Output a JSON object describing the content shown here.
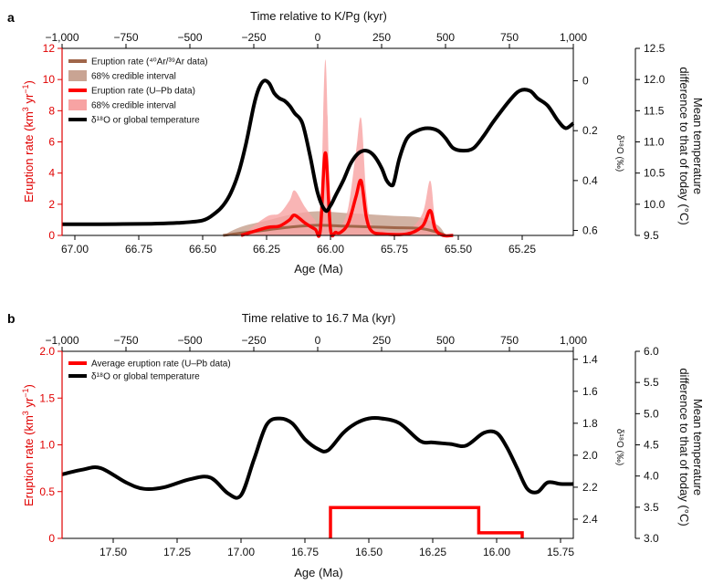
{
  "figure": {
    "panels": [
      {
        "letter": "a",
        "top_axis_label": "Time relative to K/Pg (kyr)",
        "top_ticks": [
          "−1,000",
          "−750",
          "−500",
          "−250",
          "0",
          "250",
          "500",
          "750",
          "1,000"
        ],
        "top_tick_values": [
          -1000,
          -750,
          -500,
          -250,
          0,
          250,
          500,
          750,
          1000
        ],
        "x_label": "Age (Ma)",
        "x_ticks": [
          "67.00",
          "66.75",
          "66.50",
          "66.25",
          "66.00",
          "65.75",
          "65.50",
          "65.25"
        ],
        "x_tick_values": [
          67.0,
          66.75,
          66.5,
          66.25,
          66.0,
          65.75,
          65.5,
          65.25
        ],
        "x_range": [
          67.05,
          65.05
        ],
        "y_label_main": "Eruption rate (km",
        "y_label_sup1": "3",
        "y_label_mid": " yr",
        "y_label_sup2": "−1",
        "y_label_end": ")",
        "y_ticks": [
          "0",
          "2",
          "4",
          "6",
          "8",
          "10",
          "12"
        ],
        "y_tick_values": [
          0,
          2,
          4,
          6,
          8,
          10,
          12
        ],
        "y_range": [
          0,
          12
        ],
        "d18o_label": "δ¹⁸O (‰)",
        "d18o_ticks": [
          "0",
          "0.2",
          "0.4",
          "0.6"
        ],
        "d18o_tick_values": [
          0,
          0.2,
          0.4,
          0.6
        ],
        "d18o_range": [
          -0.13,
          0.62
        ],
        "temp_label_line1": "Mean temperature",
        "temp_label_line2": "difference to that of today (°C)",
        "temp_ticks": [
          "9.5",
          "10.0",
          "10.5",
          "11.0",
          "11.5",
          "12.0",
          "12.5"
        ],
        "temp_tick_values": [
          9.5,
          10.0,
          10.5,
          11.0,
          11.5,
          12.0,
          12.5
        ],
        "temp_range": [
          9.5,
          12.5
        ],
        "legend": [
          {
            "label": "Eruption rate (⁴⁰Ar/³⁹Ar data)",
            "kind": "line",
            "color": "#a0664a"
          },
          {
            "label": "68% credible interval",
            "kind": "patch",
            "color": "#c9a493"
          },
          {
            "label": "Eruption rate (U–Pb data)",
            "kind": "line",
            "color": "#ff0000"
          },
          {
            "label": "68% credible interval",
            "kind": "patch",
            "color": "#f7a3a3"
          },
          {
            "label": "δ¹⁸O or global temperature",
            "kind": "line",
            "color": "#000000"
          }
        ]
      },
      {
        "letter": "b",
        "top_axis_label": "Time relative to 16.7 Ma (kyr)",
        "top_ticks": [
          "−1,000",
          "−750",
          "−500",
          "−250",
          "0",
          "250",
          "500",
          "750",
          "1,000"
        ],
        "top_tick_values": [
          -1000,
          -750,
          -500,
          -250,
          0,
          250,
          500,
          750,
          1000
        ],
        "x_label": "Age (Ma)",
        "x_ticks": [
          "17.50",
          "17.25",
          "17.00",
          "16.75",
          "16.50",
          "16.25",
          "16.00",
          "15.75"
        ],
        "x_tick_values": [
          17.5,
          17.25,
          17.0,
          16.75,
          16.5,
          16.25,
          16.0,
          15.75
        ],
        "x_range": [
          17.7,
          15.7
        ],
        "y_label_main": "Eruption rate (km",
        "y_label_sup1": "3",
        "y_label_mid": " yr",
        "y_label_sup2": "−1",
        "y_label_end": ")",
        "y_ticks": [
          "0",
          "0.5",
          "1.0",
          "1.5",
          "2.0"
        ],
        "y_tick_values": [
          0,
          0.5,
          1.0,
          1.5,
          2.0
        ],
        "y_range": [
          0,
          2.0
        ],
        "d18o_label": "δ¹⁸O (‰)",
        "d18o_ticks": [
          "1.4",
          "1.6",
          "1.8",
          "2.0",
          "2.2",
          "2.4"
        ],
        "d18o_tick_values": [
          1.4,
          1.6,
          1.8,
          2.0,
          2.2,
          2.4
        ],
        "d18o_range": [
          1.35,
          2.52
        ],
        "temp_label_line1": "Mean temperature",
        "temp_label_line2": "difference to that of today (°C)",
        "temp_ticks": [
          "3.0",
          "3.5",
          "4.0",
          "4.5",
          "5.0",
          "5.5",
          "6.0"
        ],
        "temp_tick_values": [
          3.0,
          3.5,
          4.0,
          4.5,
          5.0,
          5.5,
          6.0
        ],
        "temp_range": [
          3.0,
          6.0
        ],
        "legend": [
          {
            "label": "Average eruption rate (U–Pb data)",
            "kind": "line",
            "color": "#ff0000"
          },
          {
            "label": "δ¹⁸O or global temperature",
            "kind": "line",
            "color": "#000000"
          }
        ]
      }
    ]
  },
  "chart_data": [
    {
      "type": "line",
      "panel": "a",
      "xlabel": "Age (Ma)",
      "ylabel": "Eruption rate (km3 yr-1)",
      "xlim": [
        67.05,
        65.05
      ],
      "ylim": [
        0,
        12
      ],
      "legend_position": "top-left",
      "series": [
        {
          "name": "δ¹⁸O or global temperature",
          "axis": "d18o",
          "color": "#000000",
          "x": [
            67.05,
            66.9,
            66.7,
            66.6,
            66.5,
            66.45,
            66.42,
            66.39,
            66.36,
            66.33,
            66.3,
            66.28,
            66.26,
            66.24,
            66.22,
            66.2,
            66.18,
            66.16,
            66.14,
            66.11,
            66.08,
            66.05,
            66.02,
            66.0,
            65.98,
            65.95,
            65.92,
            65.89,
            65.86,
            65.83,
            65.8,
            65.78,
            65.76,
            65.75,
            65.73,
            65.7,
            65.66,
            65.62,
            65.58,
            65.55,
            65.52,
            65.48,
            65.44,
            65.4,
            65.36,
            65.3,
            65.26,
            65.22,
            65.19,
            65.15,
            65.11,
            65.08,
            65.05
          ],
          "y": [
            0.575,
            0.575,
            0.573,
            0.57,
            0.56,
            0.53,
            0.5,
            0.45,
            0.37,
            0.25,
            0.1,
            0.03,
            0.0,
            0.01,
            0.05,
            0.07,
            0.08,
            0.1,
            0.13,
            0.17,
            0.3,
            0.45,
            0.52,
            0.5,
            0.46,
            0.4,
            0.33,
            0.29,
            0.28,
            0.3,
            0.35,
            0.4,
            0.42,
            0.4,
            0.31,
            0.23,
            0.2,
            0.19,
            0.2,
            0.23,
            0.27,
            0.28,
            0.27,
            0.22,
            0.16,
            0.08,
            0.04,
            0.04,
            0.07,
            0.1,
            0.16,
            0.19,
            0.17
          ]
        },
        {
          "name": "Eruption rate (⁴⁰Ar/³⁹Ar data)",
          "axis": "eruption",
          "color": "#a0664a",
          "x": [
            66.42,
            66.35,
            66.25,
            66.15,
            66.05,
            65.95,
            65.85,
            65.75,
            65.65,
            65.58,
            65.55
          ],
          "y": [
            0.0,
            0.15,
            0.35,
            0.55,
            0.65,
            0.6,
            0.55,
            0.5,
            0.45,
            0.2,
            0.0
          ]
        },
        {
          "name": "Eruption rate (U–Pb data)",
          "axis": "eruption",
          "color": "#ff0000",
          "x": [
            66.35,
            66.25,
            66.2,
            66.16,
            66.14,
            66.1,
            66.06,
            66.04,
            66.02,
            66.0,
            65.98,
            65.96,
            65.93,
            65.9,
            65.88,
            65.86,
            65.84,
            65.8,
            65.7,
            65.64,
            65.61,
            65.59,
            65.56,
            65.52
          ],
          "y": [
            0.0,
            0.5,
            0.6,
            1.0,
            1.3,
            0.8,
            0.4,
            0.3,
            5.3,
            0.4,
            0.2,
            0.2,
            0.8,
            2.5,
            3.5,
            1.2,
            0.3,
            0.1,
            0.1,
            0.6,
            1.6,
            0.4,
            0.0,
            0.0
          ]
        }
      ]
    },
    {
      "type": "line",
      "panel": "b",
      "xlabel": "Age (Ma)",
      "ylabel": "Eruption rate (km3 yr-1)",
      "xlim": [
        17.7,
        15.7
      ],
      "ylim": [
        0,
        2.0
      ],
      "legend_position": "top-left",
      "series": [
        {
          "name": "δ¹⁸O or global temperature",
          "axis": "d18o",
          "color": "#000000",
          "x": [
            17.7,
            17.62,
            17.55,
            17.45,
            17.38,
            17.3,
            17.2,
            17.12,
            17.05,
            17.0,
            16.95,
            16.9,
            16.85,
            16.8,
            16.75,
            16.7,
            16.66,
            16.6,
            16.55,
            16.5,
            16.45,
            16.38,
            16.3,
            16.25,
            16.18,
            16.12,
            16.05,
            16.0,
            15.96,
            15.92,
            15.88,
            15.84,
            15.8,
            15.75,
            15.7
          ],
          "y": [
            2.12,
            2.09,
            2.08,
            2.17,
            2.21,
            2.2,
            2.15,
            2.14,
            2.24,
            2.25,
            2.03,
            1.81,
            1.77,
            1.8,
            1.9,
            1.96,
            1.97,
            1.86,
            1.8,
            1.77,
            1.77,
            1.8,
            1.91,
            1.92,
            1.93,
            1.94,
            1.86,
            1.86,
            1.95,
            2.08,
            2.21,
            2.23,
            2.17,
            2.18,
            2.18
          ]
        },
        {
          "name": "Average eruption rate (U–Pb data)",
          "axis": "eruption",
          "color": "#ff0000",
          "x": [
            16.65,
            16.65,
            16.07,
            16.07,
            15.9,
            15.9
          ],
          "y": [
            0.0,
            0.33,
            0.33,
            0.06,
            0.06,
            0.0
          ]
        }
      ]
    }
  ]
}
